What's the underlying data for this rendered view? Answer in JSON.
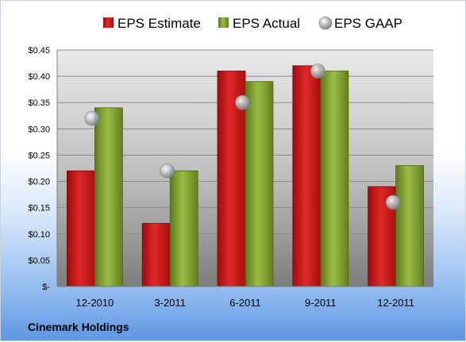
{
  "chart_data": {
    "type": "bar",
    "categories": [
      "12-2010",
      "3-2011",
      "6-2011",
      "9-2011",
      "12-2011"
    ],
    "series": [
      {
        "name": "EPS Estimate",
        "kind": "bar",
        "color": "#d42020",
        "values": [
          0.22,
          0.12,
          0.41,
          0.42,
          0.19
        ]
      },
      {
        "name": "EPS Actual",
        "kind": "bar",
        "color": "#8fae3c",
        "values": [
          0.34,
          0.22,
          0.39,
          0.41,
          0.23
        ]
      },
      {
        "name": "EPS GAAP",
        "kind": "marker",
        "color": "#b8bcc2",
        "values": [
          0.32,
          0.22,
          0.35,
          0.41,
          0.16
        ]
      }
    ],
    "ylim": [
      0,
      0.45
    ],
    "yticks": [
      0,
      0.05,
      0.1,
      0.15,
      0.2,
      0.25,
      0.3,
      0.35,
      0.4,
      0.45
    ],
    "ytick_labels": [
      "$-",
      "$0.05",
      "$0.10",
      "$0.15",
      "$0.20",
      "$0.25",
      "$0.30",
      "$0.35",
      "$0.40",
      "$0.45"
    ],
    "grid": true,
    "legend_position": "top"
  },
  "company": "Cinemark Holdings"
}
